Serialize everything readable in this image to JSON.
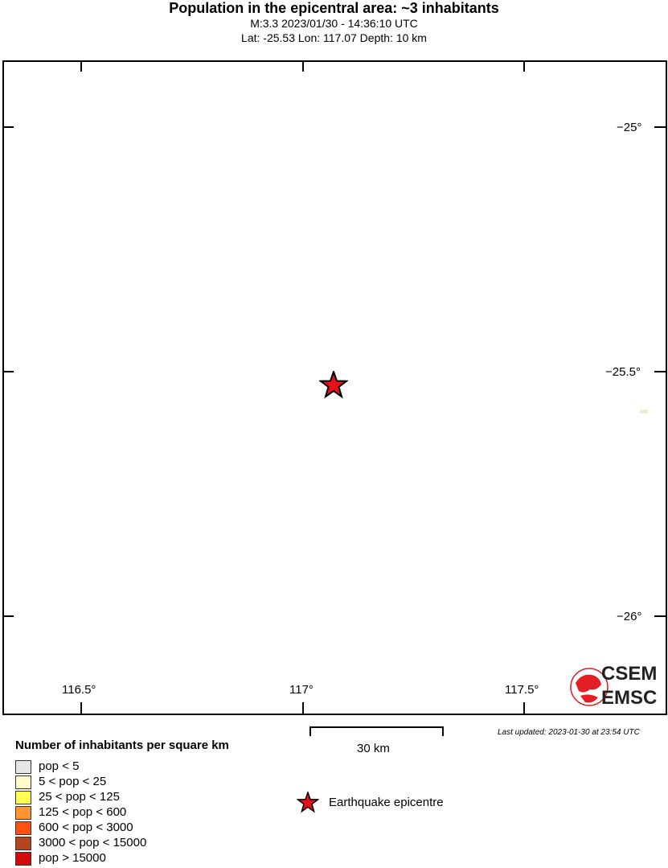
{
  "header": {
    "title": "Population in the epicentral area: ~3 inhabitants",
    "subtitle1": "M:3.3 2023/01/30 - 14:36:10 UTC",
    "subtitle2": "Lat: -25.53 Lon: 117.07 Depth: 10 km"
  },
  "map": {
    "lon_ticks": [
      "116.5°",
      "117°",
      "117.5°"
    ],
    "lat_ticks": [
      "−25°",
      "−25.5°",
      "−26°"
    ],
    "epicentre": {
      "lat": -25.53,
      "lon": 117.07,
      "color": "#e8101a"
    },
    "logo": {
      "line1": "CSEM",
      "line2": "EMSC",
      "color": "#e31e24"
    }
  },
  "scale_bar": {
    "label": "30 km"
  },
  "updated": "Last updated: 2023-01-30 at 23:54 UTC",
  "legend": {
    "title": "Number of inhabitants per square km",
    "items": [
      {
        "label": "pop < 5",
        "color": "#e6e6e6"
      },
      {
        "label": "5 < pop < 25",
        "color": "#fffac8"
      },
      {
        "label": "25 < pop < 125",
        "color": "#ffff50"
      },
      {
        "label": "125 < pop < 600",
        "color": "#ff9632"
      },
      {
        "label": "600 < pop < 3000",
        "color": "#ff5014"
      },
      {
        "label": "3000 < pop < 15000",
        "color": "#b4461e"
      },
      {
        "label": "pop > 15000",
        "color": "#d20a0a"
      }
    ],
    "epicentre_label": "Earthquake epicentre"
  }
}
